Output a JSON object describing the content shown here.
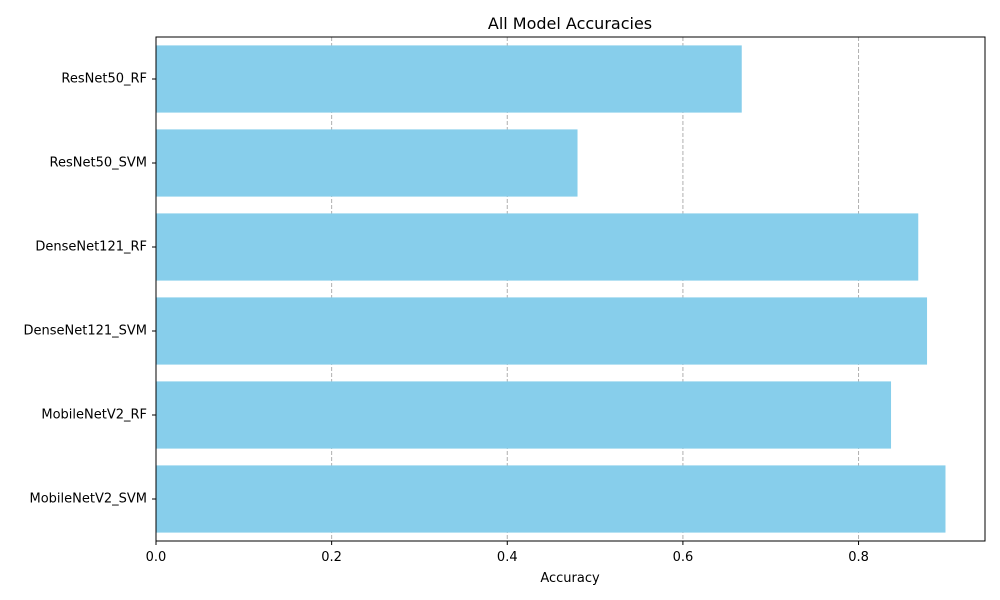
{
  "chart_data": {
    "type": "bar",
    "orientation": "horizontal",
    "title": "All Model Accuracies",
    "xlabel": "Accuracy",
    "ylabel": "",
    "categories": [
      "ResNet50_RF",
      "ResNet50_SVM",
      "DenseNet121_RF",
      "DenseNet121_SVM",
      "MobileNetV2_RF",
      "MobileNetV2_SVM"
    ],
    "values": [
      0.667,
      0.48,
      0.868,
      0.878,
      0.837,
      0.899
    ],
    "xlim": [
      0,
      0.944
    ],
    "xticks": [
      0.0,
      0.2,
      0.4,
      0.6,
      0.8
    ],
    "xtick_labels": [
      "0.0",
      "0.2",
      "0.4",
      "0.6",
      "0.8"
    ],
    "grid": "x-axis dashed",
    "legend": "none",
    "colors": {
      "bar": "#87CEEB",
      "grid": "#b0b0b0",
      "axis": "#000000"
    }
  }
}
